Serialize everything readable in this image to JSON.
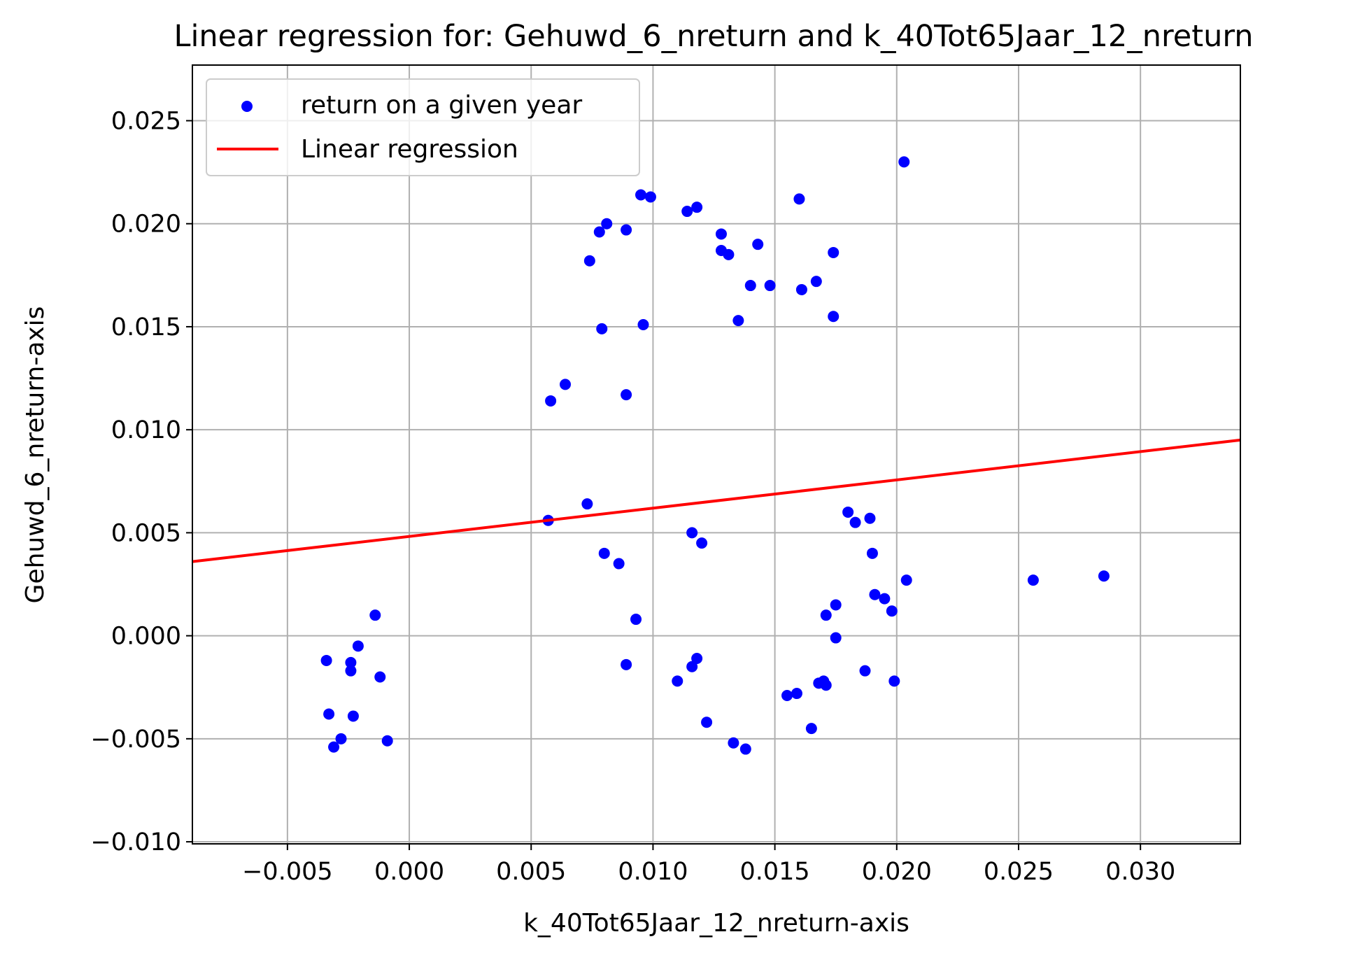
{
  "chart_data": {
    "type": "scatter",
    "title": "Linear regression for: Gehuwd_6_nreturn and k_40Tot65Jaar_12_nreturn",
    "xlabel": "k_40Tot65Jaar_12_nreturn-axis",
    "ylabel": "Gehuwd_6_nreturn-axis",
    "xlim": [
      -0.0089,
      0.0341
    ],
    "ylim": [
      -0.0101,
      0.0277
    ],
    "x_ticks": [
      -0.005,
      0.0,
      0.005,
      0.01,
      0.015,
      0.02,
      0.025,
      0.03
    ],
    "x_tick_labels": [
      "−0.005",
      "0.000",
      "0.005",
      "0.010",
      "0.015",
      "0.020",
      "0.025",
      "0.030"
    ],
    "y_ticks": [
      -0.01,
      -0.005,
      0.0,
      0.005,
      0.01,
      0.015,
      0.02,
      0.025
    ],
    "y_tick_labels": [
      "−0.010",
      "−0.005",
      "0.000",
      "0.005",
      "0.010",
      "0.015",
      "0.020",
      "0.025"
    ],
    "grid": true,
    "legend_position": "top-left",
    "series": [
      {
        "name": "return on a given year",
        "kind": "scatter",
        "color": "#0000ff",
        "points": [
          [
            -0.0034,
            -0.0012
          ],
          [
            -0.0033,
            -0.0038
          ],
          [
            -0.0031,
            -0.0054
          ],
          [
            -0.0028,
            -0.005
          ],
          [
            -0.0024,
            -0.0017
          ],
          [
            -0.0024,
            -0.0013
          ],
          [
            -0.0023,
            -0.0039
          ],
          [
            -0.0021,
            -0.0005
          ],
          [
            -0.0014,
            0.001
          ],
          [
            -0.0012,
            -0.002
          ],
          [
            -0.0009,
            -0.0051
          ],
          [
            0.0057,
            0.0056
          ],
          [
            0.0058,
            0.0114
          ],
          [
            0.0064,
            0.0122
          ],
          [
            0.0073,
            0.0064
          ],
          [
            0.0074,
            0.0182
          ],
          [
            0.0078,
            0.0196
          ],
          [
            0.0079,
            0.0149
          ],
          [
            0.008,
            0.004
          ],
          [
            0.0081,
            0.02
          ],
          [
            0.0086,
            0.0035
          ],
          [
            0.0089,
            0.0197
          ],
          [
            0.0089,
            0.0117
          ],
          [
            0.0089,
            -0.0014
          ],
          [
            0.0093,
            0.0008
          ],
          [
            0.0095,
            0.0214
          ],
          [
            0.0096,
            0.0151
          ],
          [
            0.0099,
            0.0213
          ],
          [
            0.011,
            -0.0022
          ],
          [
            0.0114,
            0.0206
          ],
          [
            0.0116,
            0.005
          ],
          [
            0.0116,
            -0.0015
          ],
          [
            0.0118,
            0.0208
          ],
          [
            0.0118,
            -0.0011
          ],
          [
            0.012,
            0.0045
          ],
          [
            0.0122,
            -0.0042
          ],
          [
            0.0128,
            0.0195
          ],
          [
            0.0128,
            0.0187
          ],
          [
            0.0131,
            0.0185
          ],
          [
            0.0133,
            -0.0052
          ],
          [
            0.0135,
            0.0153
          ],
          [
            0.0138,
            -0.0055
          ],
          [
            0.014,
            0.017
          ],
          [
            0.0143,
            0.019
          ],
          [
            0.0148,
            0.017
          ],
          [
            0.0155,
            -0.0029
          ],
          [
            0.0159,
            -0.0028
          ],
          [
            0.016,
            0.0212
          ],
          [
            0.0161,
            0.0168
          ],
          [
            0.0165,
            -0.0045
          ],
          [
            0.0167,
            0.0172
          ],
          [
            0.0168,
            -0.0023
          ],
          [
            0.017,
            -0.0022
          ],
          [
            0.0171,
            -0.0024
          ],
          [
            0.0171,
            0.001
          ],
          [
            0.0174,
            0.0186
          ],
          [
            0.0174,
            0.0155
          ],
          [
            0.0175,
            0.0015
          ],
          [
            0.0175,
            -0.0001
          ],
          [
            0.018,
            0.006
          ],
          [
            0.0183,
            0.0055
          ],
          [
            0.0187,
            -0.0017
          ],
          [
            0.0189,
            0.0057
          ],
          [
            0.019,
            0.004
          ],
          [
            0.0191,
            0.002
          ],
          [
            0.0195,
            0.0018
          ],
          [
            0.0198,
            0.0012
          ],
          [
            0.0199,
            -0.0022
          ],
          [
            0.0203,
            0.023
          ],
          [
            0.0204,
            0.0027
          ],
          [
            0.0256,
            0.0027
          ],
          [
            0.0285,
            0.0029
          ]
        ]
      },
      {
        "name": "Linear regression",
        "kind": "line",
        "color": "#ff0000",
        "x": [
          -0.0089,
          0.0341
        ],
        "y": [
          0.0036,
          0.0095
        ]
      }
    ]
  }
}
